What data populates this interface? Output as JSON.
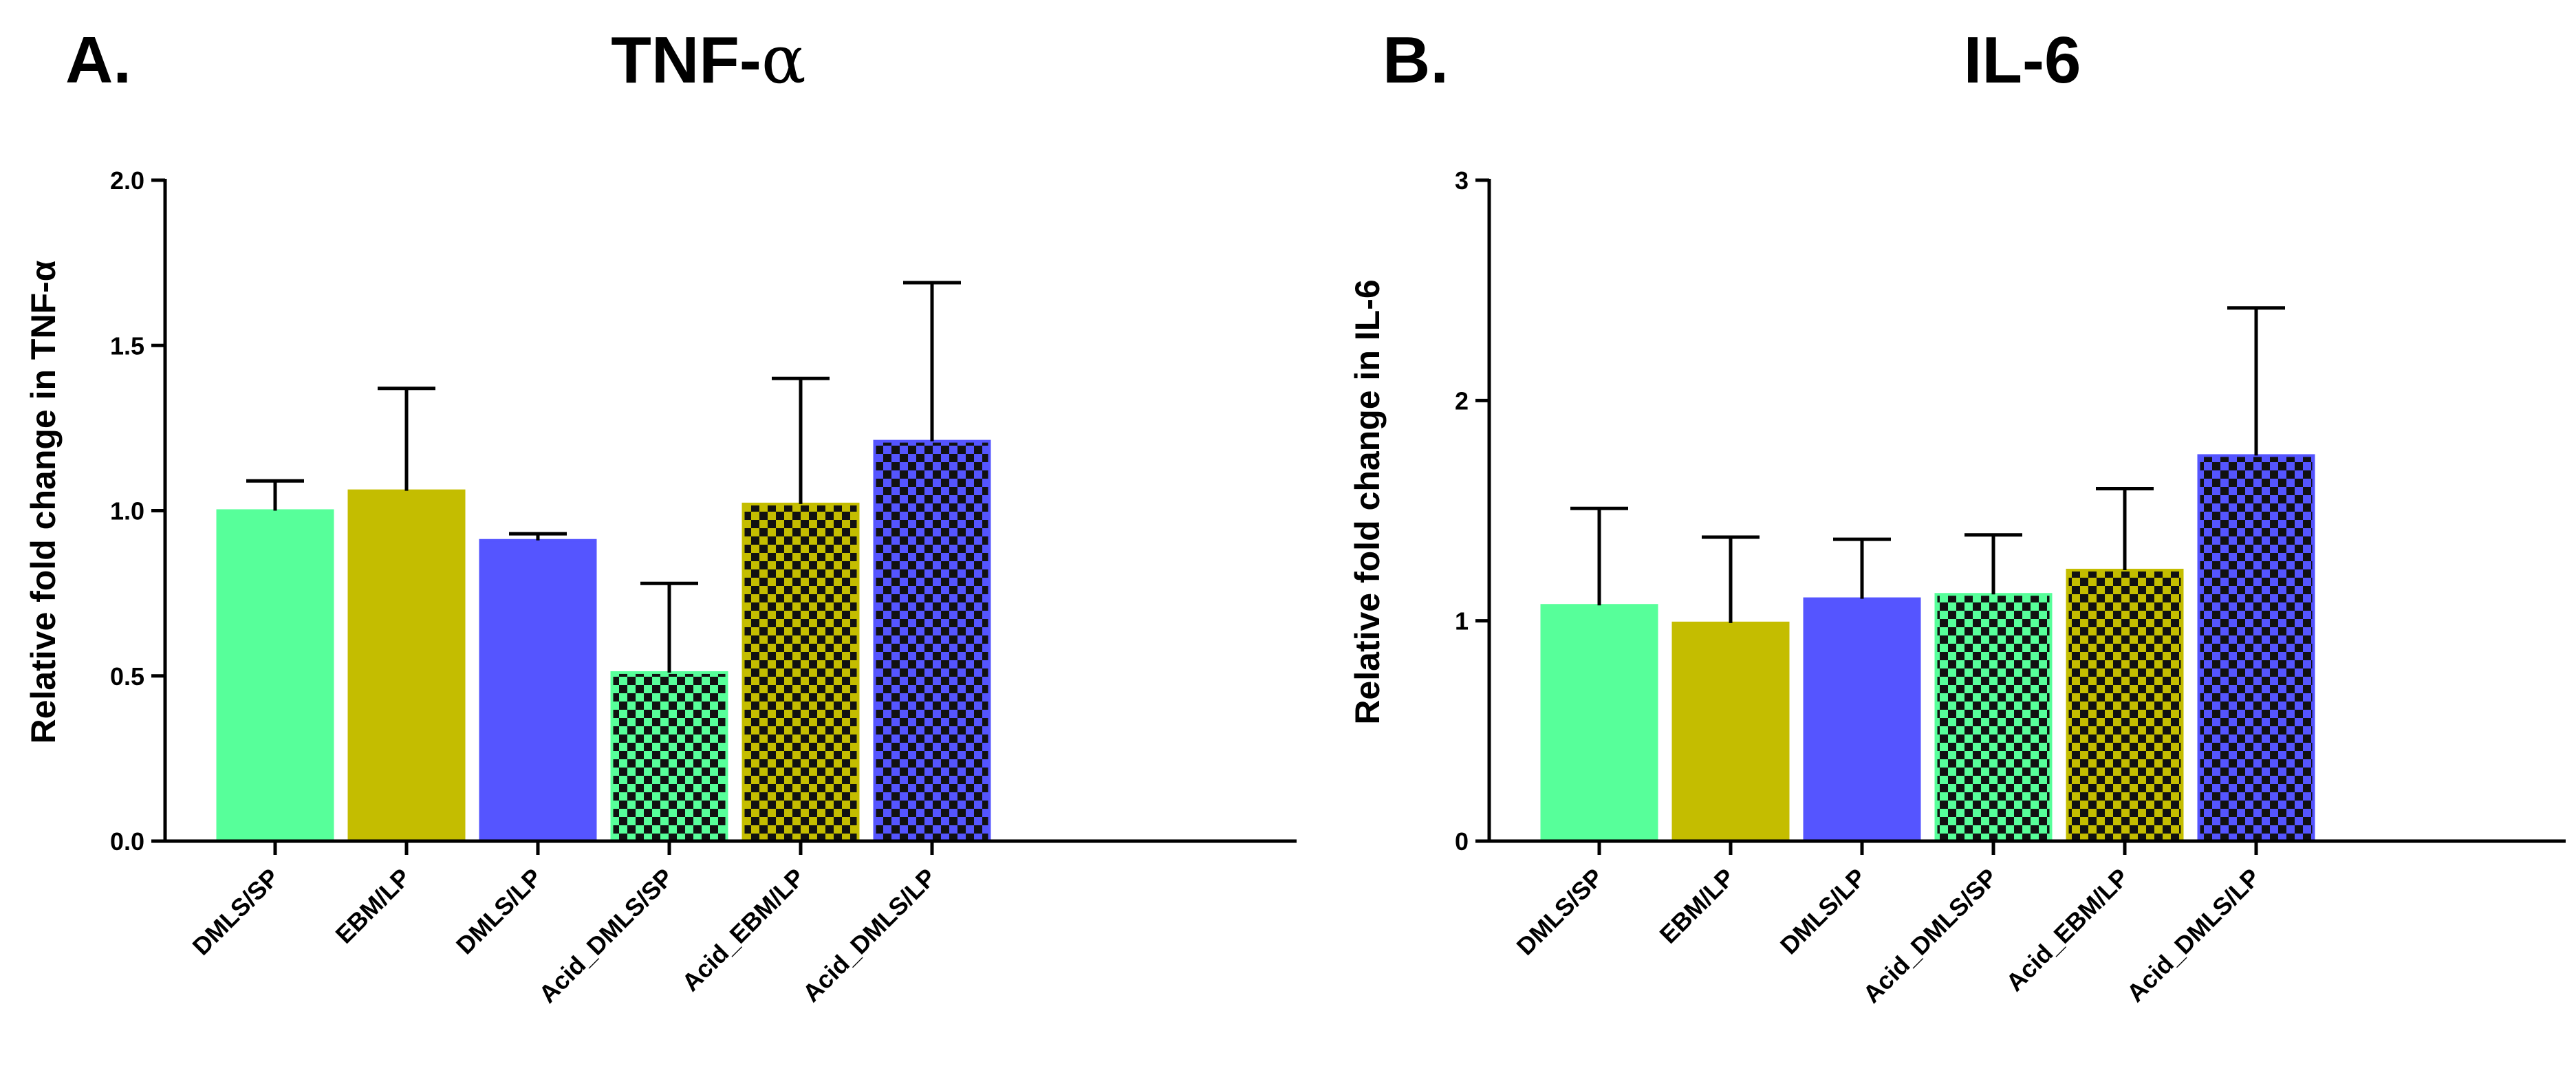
{
  "chart_data": [
    {
      "type": "bar",
      "panel": "A.",
      "title": "TNF-",
      "title_symbol": "α",
      "ylabel": "Relative fold change in TNF-α",
      "xlabel": "",
      "ylim": [
        0,
        2.0
      ],
      "yticks": [
        "0.0",
        "0.5",
        "1.0",
        "1.5",
        "2.0"
      ],
      "ytick_values": [
        0,
        0.5,
        1.0,
        1.5,
        2.0
      ],
      "categories": [
        "DMLS/SP",
        "EBM/LP",
        "DMLS/LP",
        "Acid_DMLS/SP",
        "Acid_EBM/LP",
        "Acid_DMLS/LP"
      ],
      "values": [
        1.0,
        1.06,
        0.91,
        0.51,
        1.02,
        1.21
      ],
      "errors": [
        0.09,
        0.31,
        0.02,
        0.27,
        0.38,
        0.48
      ],
      "colors": [
        "#57FF9A",
        "#C4BD00",
        "#5555FF",
        "#57FF9A",
        "#C4BD00",
        "#5555FF"
      ],
      "patterns": [
        "solid",
        "solid",
        "solid",
        "checker",
        "checker",
        "checker"
      ]
    },
    {
      "type": "bar",
      "panel": "B.",
      "title": "IL-6",
      "title_symbol": "",
      "ylabel": "Relative fold change in IL-6",
      "xlabel": "",
      "ylim": [
        0,
        3
      ],
      "yticks": [
        "0",
        "1",
        "2",
        "3"
      ],
      "ytick_values": [
        0,
        1,
        2,
        3
      ],
      "categories": [
        "DMLS/SP",
        "EBM/LP",
        "DMLS/LP",
        "Acid_DMLS/SP",
        "Acid_EBM/LP",
        "Acid_DMLS/LP"
      ],
      "values": [
        1.07,
        0.99,
        1.1,
        1.12,
        1.23,
        1.75
      ],
      "errors": [
        0.44,
        0.39,
        0.27,
        0.27,
        0.37,
        0.67
      ],
      "colors": [
        "#57FF9A",
        "#C4BD00",
        "#5555FF",
        "#57FF9A",
        "#C4BD00",
        "#5555FF"
      ],
      "patterns": [
        "solid",
        "solid",
        "solid",
        "checker",
        "checker",
        "checker"
      ]
    }
  ]
}
